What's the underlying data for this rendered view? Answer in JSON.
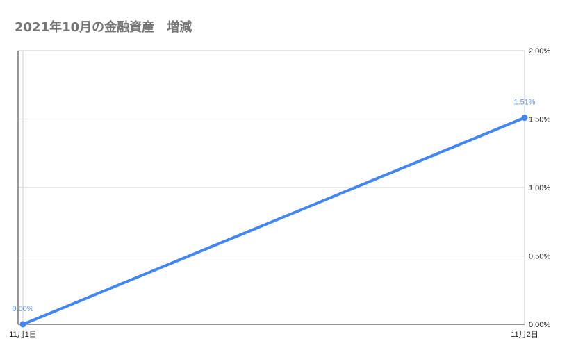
{
  "chart_data": {
    "type": "line",
    "title": "2021年10月の金融資産　増減",
    "categories": [
      "11月1日",
      "11月2日"
    ],
    "series": [
      {
        "values": [
          0.0,
          1.51
        ],
        "data_labels": [
          "0.00%",
          "1.51%"
        ],
        "color": "#4285f4"
      }
    ],
    "y_axis": {
      "position": "right",
      "ylim": [
        0,
        2.0
      ],
      "ticks": [
        0,
        0.5,
        1.0,
        1.5,
        2.0
      ],
      "tick_labels": [
        "0.00%",
        "0.50%",
        "1.00%",
        "1.50%",
        "2.00%"
      ]
    },
    "grid": true,
    "legend": "none"
  }
}
